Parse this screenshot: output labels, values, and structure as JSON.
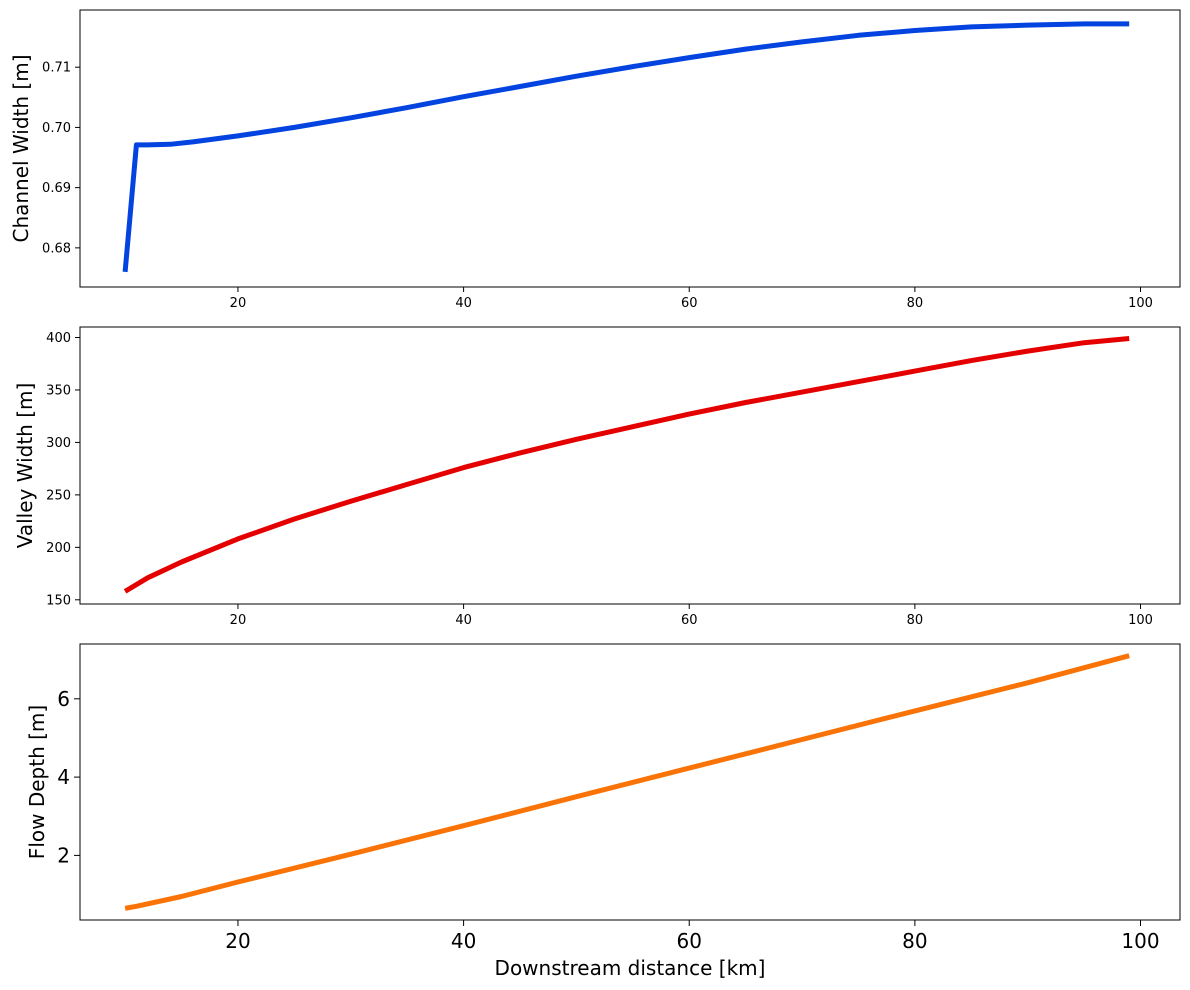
{
  "chart_data": [
    {
      "type": "line",
      "ylabel": "Channel Width [m]",
      "xlabel": "",
      "xlim": [
        6,
        103.5
      ],
      "ylim": [
        0.6735,
        0.7195
      ],
      "xticks": [
        20,
        40,
        60,
        80,
        100
      ],
      "yticks": [
        0.68,
        0.69,
        0.7,
        0.71
      ],
      "ytick_labels": [
        "0.68",
        "0.69",
        "0.70",
        "0.71"
      ],
      "grid": false,
      "series": [
        {
          "color": "#0343df",
          "x": [
            10,
            11,
            12,
            14,
            16,
            18,
            20,
            25,
            30,
            35,
            40,
            45,
            50,
            55,
            60,
            65,
            70,
            75,
            80,
            85,
            90,
            95,
            99
          ],
          "y": [
            0.676,
            0.6971,
            0.6971,
            0.6972,
            0.6976,
            0.6981,
            0.6986,
            0.7,
            0.7016,
            0.7033,
            0.7051,
            0.7068,
            0.7085,
            0.7101,
            0.7116,
            0.713,
            0.7142,
            0.7153,
            0.7161,
            0.7167,
            0.717,
            0.7172,
            0.7172
          ]
        }
      ]
    },
    {
      "type": "line",
      "ylabel": "Valley Width [m]",
      "xlabel": "",
      "xlim": [
        6,
        103.5
      ],
      "ylim": [
        146,
        410
      ],
      "xticks": [
        20,
        40,
        60,
        80,
        100
      ],
      "yticks": [
        150,
        200,
        250,
        300,
        350,
        400
      ],
      "ytick_labels": [
        "150",
        "200",
        "250",
        "300",
        "350",
        "400"
      ],
      "grid": false,
      "series": [
        {
          "color": "#e50000",
          "x": [
            10,
            12,
            15,
            20,
            25,
            30,
            35,
            40,
            45,
            50,
            55,
            60,
            65,
            70,
            75,
            80,
            85,
            90,
            95,
            99
          ],
          "y": [
            158,
            171,
            186,
            208,
            227,
            244,
            260,
            276,
            290,
            303,
            315,
            327,
            338,
            348,
            358,
            368,
            378,
            387,
            395,
            399
          ]
        }
      ]
    },
    {
      "type": "line",
      "ylabel": "Flow Depth [m]",
      "xlabel": "Downstream distance [km]",
      "xlim": [
        6,
        103.5
      ],
      "ylim": [
        0.35,
        7.4
      ],
      "xticks": [
        20,
        40,
        60,
        80,
        100
      ],
      "yticks": [
        2,
        4,
        6
      ],
      "ytick_labels": [
        "2",
        "4",
        "6"
      ],
      "grid": false,
      "series": [
        {
          "color": "#f97306",
          "x": [
            10,
            11,
            15,
            20,
            30,
            40,
            50,
            60,
            70,
            80,
            90,
            99
          ],
          "y": [
            0.65,
            0.7,
            0.95,
            1.32,
            2.03,
            2.76,
            3.5,
            4.23,
            4.96,
            5.69,
            6.41,
            7.1
          ]
        }
      ]
    }
  ]
}
